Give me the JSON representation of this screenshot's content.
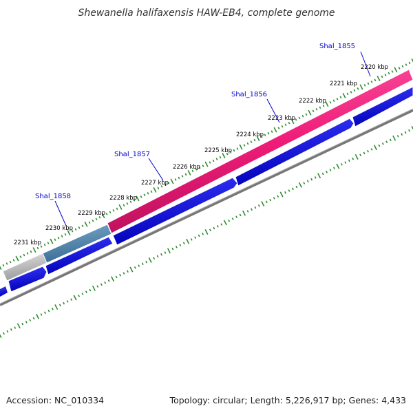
{
  "title": "Shewanella halifaxensis HAW-EB4, complete genome",
  "footer": {
    "accession": "Accession: NC_010334",
    "summary": "Topology: circular; Length: 5,226,917 bp; Genes: 4,433"
  },
  "ticks": [
    {
      "label": "2220 kbp"
    },
    {
      "label": "2221 kbp"
    },
    {
      "label": "2222 kbp"
    },
    {
      "label": "2223 kbp"
    },
    {
      "label": "2224 kbp"
    },
    {
      "label": "2225 kbp"
    },
    {
      "label": "2226 kbp"
    },
    {
      "label": "2227 kbp"
    },
    {
      "label": "2228 kbp"
    },
    {
      "label": "2229 kbp"
    },
    {
      "label": "2230 kbp"
    },
    {
      "label": "2231 kbp"
    }
  ],
  "genes": [
    {
      "label": "Shal_1855"
    },
    {
      "label": "Shal_1856"
    },
    {
      "label": "Shal_1857"
    },
    {
      "label": "Shal_1858"
    }
  ],
  "colors": {
    "tick_green": "#2e8b2e",
    "gene_blue": "#0000ee",
    "highlight_pink": "#f0287e",
    "highlight_steelblue": "#4a7fa8",
    "highlight_grey": "#b8b8b8",
    "backbone_grey": "#777777",
    "label_blue": "#0000cc"
  }
}
